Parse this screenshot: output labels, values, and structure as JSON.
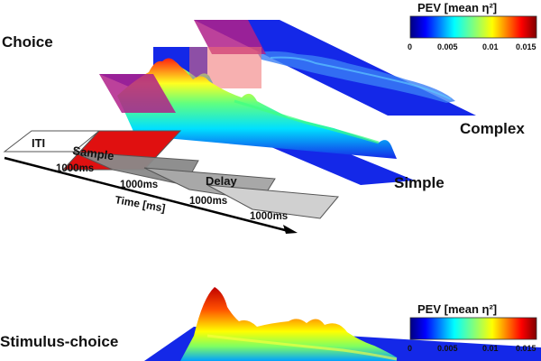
{
  "labels": {
    "choice": "Choice",
    "complex": "Complex",
    "simple": "Simple",
    "stimulus_choice": "Stimulus-choice"
  },
  "colorbars": [
    {
      "title": "PEV [mean η²]",
      "ticks": [
        "0",
        "0.005",
        "0.01",
        "0.015"
      ],
      "colormap": "jet",
      "range": [
        0,
        0.015
      ]
    },
    {
      "title": "PEV [mean η²]",
      "ticks": [
        "0",
        "0.005",
        "0.01",
        "0.015"
      ],
      "colormap": "jet",
      "range": [
        0,
        0.015
      ]
    }
  ],
  "timeline": {
    "segments": [
      {
        "label": "ITI",
        "color": "#ffffff"
      },
      {
        "label": "Sample",
        "color": "#e01010"
      },
      {
        "label": "",
        "color": "#8a8a8a"
      },
      {
        "label": "Delay",
        "color": "#a8a8a8"
      },
      {
        "label": "",
        "color": "#d0d0d0"
      }
    ],
    "durations": [
      "1000ms",
      "1000ms",
      "1000ms",
      "1000ms"
    ],
    "axis_label": "Time [ms]"
  },
  "colors": {
    "surface_base": "#1428e8",
    "highlight": "#b0208a",
    "sample_red": "#e01010"
  }
}
